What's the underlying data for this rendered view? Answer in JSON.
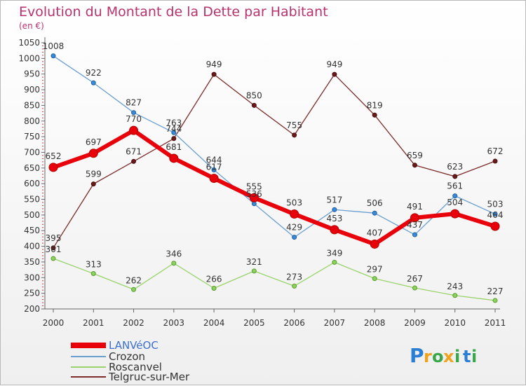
{
  "header": {
    "title": "Evolution du Montant de la Dette par Habitant",
    "unit": "(en €)"
  },
  "brand": {
    "letters": [
      "P",
      "r",
      "o",
      "x",
      "i",
      "t",
      "i"
    ],
    "colors": [
      "#2a7fd4",
      "#f2a21b",
      "#3aa84a",
      "#f2a21b",
      "#3aa84a",
      "#2a7fd4",
      "#3aa84a"
    ]
  },
  "chart_data": {
    "type": "line",
    "title": "Evolution du Montant de la Dette par Habitant",
    "ylabel": "(en €)",
    "xlabel": "",
    "x": [
      "2000",
      "2001",
      "2002",
      "2003",
      "2004",
      "2005",
      "2006",
      "2007",
      "2008",
      "2009",
      "2010",
      "2011"
    ],
    "yticks": [
      200,
      250,
      300,
      350,
      400,
      450,
      500,
      550,
      600,
      650,
      700,
      750,
      800,
      850,
      900,
      950,
      1000,
      1050
    ],
    "ylim": [
      200,
      1050
    ],
    "grid": false,
    "legend": "bottom-left",
    "series": [
      {
        "name": "LANVéOC",
        "color": "#e8000b",
        "values": [
          652,
          697,
          770,
          681,
          617,
          555,
          503,
          453,
          407,
          491,
          504,
          464
        ],
        "labels": [
          "652",
          "697",
          "770",
          "681",
          "617",
          "555",
          "503",
          "453",
          "407",
          "491",
          "504",
          "464"
        ]
      },
      {
        "name": "Crozon",
        "color": "#6a9fd0",
        "values": [
          1008,
          922,
          827,
          763,
          644,
          536,
          429,
          517,
          506,
          437,
          561,
          503
        ],
        "labels": [
          "1008",
          "922",
          "827",
          "763",
          "644",
          "536",
          "429",
          "517",
          "506",
          "437",
          "561",
          "503"
        ]
      },
      {
        "name": "Roscanvel",
        "color": "#9ad36b",
        "values": [
          361,
          313,
          262,
          346,
          266,
          321,
          273,
          349,
          297,
          267,
          243,
          227
        ],
        "labels": [
          "361",
          "313",
          "262",
          "346",
          "266",
          "321",
          "273",
          "349",
          "297",
          "267",
          "243",
          "227"
        ]
      },
      {
        "name": "Telgruc-sur-Mer",
        "color": "#7d2b2b",
        "values": [
          395,
          599,
          671,
          744,
          949,
          850,
          755,
          949,
          819,
          659,
          623,
          672
        ],
        "labels": [
          "395",
          "599",
          "671",
          "744",
          "949",
          "850",
          "755",
          "949",
          "819",
          "659",
          "623",
          "672"
        ]
      }
    ]
  }
}
